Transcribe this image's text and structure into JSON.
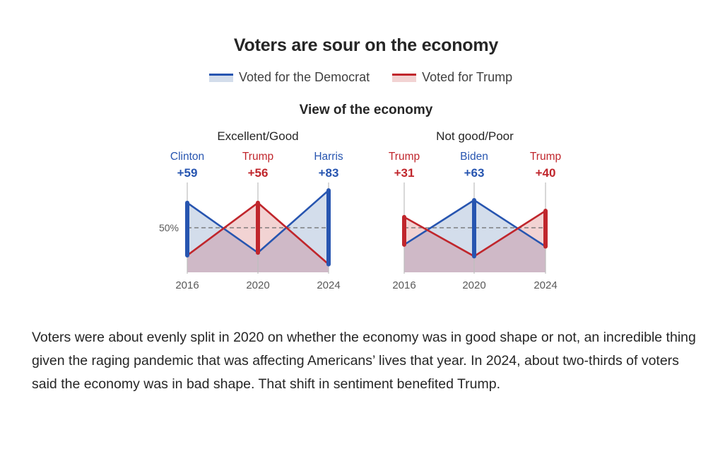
{
  "chart_data": [
    {
      "type": "area",
      "title": "Excellent/Good",
      "group_title": "View of the economy",
      "x": [
        "2016",
        "2020",
        "2024"
      ],
      "ylim": [
        0,
        100
      ],
      "reference_line": {
        "value": 50,
        "label": "50%"
      },
      "series": [
        {
          "name": "Voted for the Democrat",
          "values": [
            78,
            22,
            92
          ]
        },
        {
          "name": "Voted for Trump",
          "values": [
            19,
            78,
            9
          ]
        }
      ],
      "annotations": [
        {
          "x": "2016",
          "winner": "Clinton",
          "margin": "+59",
          "party": "dem"
        },
        {
          "x": "2020",
          "winner": "Trump",
          "margin": "+56",
          "party": "rep"
        },
        {
          "x": "2024",
          "winner": "Harris",
          "margin": "+83",
          "party": "dem"
        }
      ]
    },
    {
      "type": "area",
      "title": "Not good/Poor",
      "group_title": "View of the economy",
      "x": [
        "2016",
        "2020",
        "2024"
      ],
      "ylim": [
        0,
        100
      ],
      "reference_line": {
        "value": 50,
        "label": ""
      },
      "series": [
        {
          "name": "Voted for the Democrat",
          "values": [
            31,
            81,
            29
          ]
        },
        {
          "name": "Voted for Trump",
          "values": [
            62,
            18,
            69
          ]
        }
      ],
      "annotations": [
        {
          "x": "2016",
          "winner": "Trump",
          "margin": "+31",
          "party": "rep"
        },
        {
          "x": "2020",
          "winner": "Biden",
          "margin": "+63",
          "party": "dem"
        },
        {
          "x": "2024",
          "winner": "Trump",
          "margin": "+40",
          "party": "rep"
        }
      ]
    }
  ],
  "header": {
    "title": "Voters are sour on the economy",
    "subtitle": "View of the economy"
  },
  "legend": [
    {
      "label": "Voted for the Democrat",
      "key": "dem"
    },
    {
      "label": "Voted for Trump",
      "key": "rep"
    }
  ],
  "colors": {
    "dem": "#2755b0",
    "dem_fill": "#d3ddeb",
    "rep": "#c0262c",
    "rep_fill": "#f2d3d3",
    "overlap_fill": "#cfb9c7",
    "axis": "#bdbdbd",
    "tick_text": "#595959"
  },
  "paragraph": "Voters were about evenly split in 2020 on whether the economy was in good shape or not, an incredible thing given the raging pandemic that was affecting Americans’ lives that year. In 2024, about two-thirds of voters said the economy was in bad shape. That shift in sentiment benefited Trump."
}
